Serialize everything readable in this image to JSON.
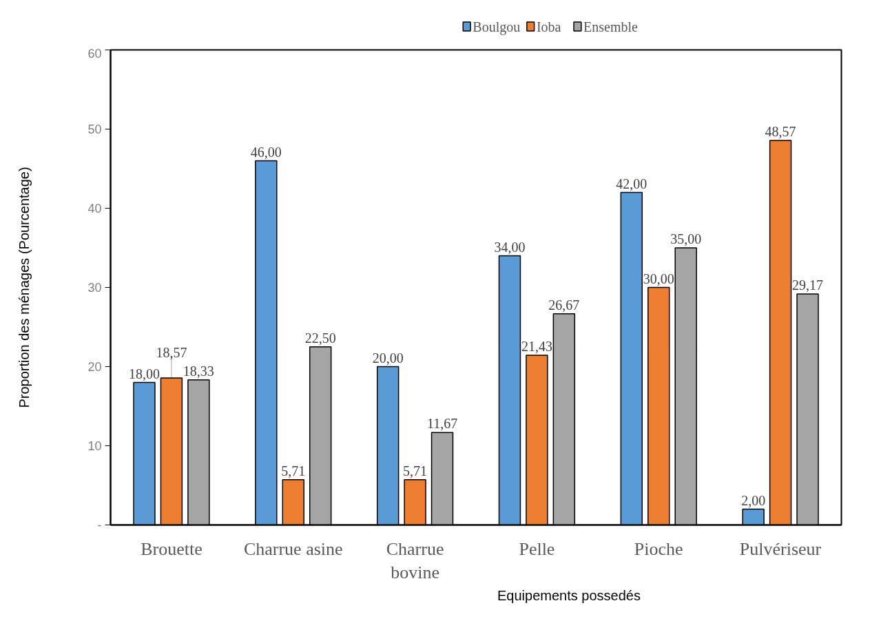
{
  "chart_data": {
    "type": "bar",
    "xlabel": "Equipements possedés",
    "ylabel": "Proportion des ménages (Pourcentage)",
    "categories": [
      "Brouette",
      "Charrue asine",
      "Charrue bovine",
      "Pelle",
      "Pioche",
      "Pulvériseur"
    ],
    "series": [
      {
        "name": "Boulgou",
        "color": "#5b9bd5",
        "values": [
          18.0,
          46.0,
          20.0,
          34.0,
          42.0,
          2.0
        ],
        "value_labels": [
          "18,00",
          "46,00",
          "20,00",
          "34,00",
          "42,00",
          "2,00"
        ]
      },
      {
        "name": "Ioba",
        "color": "#ed7d31",
        "values": [
          18.57,
          5.71,
          5.71,
          21.43,
          30.0,
          48.57
        ],
        "value_labels": [
          "18,57",
          "5,71",
          "5,71",
          "21,43",
          "30,00",
          "48,57"
        ]
      },
      {
        "name": "Ensemble",
        "color": "#a5a5a5",
        "values": [
          18.33,
          22.5,
          11.67,
          26.67,
          35.0,
          29.17
        ],
        "value_labels": [
          "18,33",
          "22,50",
          "11,67",
          "26,67",
          "35,00",
          "29,17"
        ]
      }
    ],
    "ylim": [
      0,
      60
    ],
    "yticks": [
      {
        "value": 0,
        "label": "-"
      },
      10,
      20,
      30,
      40,
      50,
      60
    ],
    "legend": "top",
    "grid": false
  }
}
